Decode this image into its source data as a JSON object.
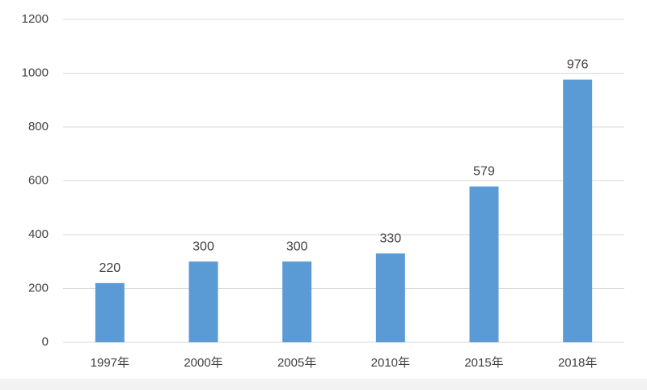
{
  "chart_data": {
    "type": "bar",
    "categories": [
      "1997年",
      "2000年",
      "2005年",
      "2010年",
      "2015年",
      "2018年"
    ],
    "values": [
      220,
      300,
      300,
      330,
      579,
      976
    ],
    "color": "#5b9bd5",
    "ylim": [
      0,
      1200
    ],
    "yticks": [
      0,
      200,
      400,
      600,
      800,
      1000,
      1200
    ],
    "grid": true
  }
}
